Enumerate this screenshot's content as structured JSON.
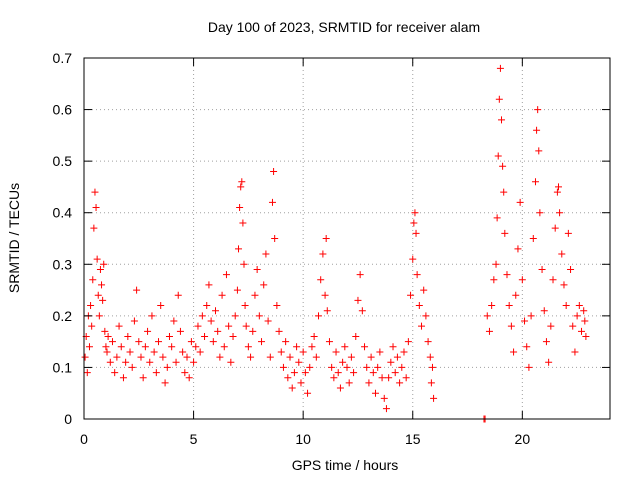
{
  "chart_data": {
    "type": "scatter",
    "title": "Day 100 of 2023, SRMTID for receiver alam",
    "xlabel": "GPS time / hours",
    "ylabel": "SRMTID / TECUs",
    "xlim": [
      0,
      24
    ],
    "ylim": [
      0,
      0.7
    ],
    "xticks": [
      0,
      5,
      10,
      15,
      20
    ],
    "xtick_labels": [
      "0",
      "5",
      "10",
      "15",
      "20"
    ],
    "yticks": [
      0,
      0.1,
      0.2,
      0.3,
      0.4,
      0.5,
      0.6,
      0.7
    ],
    "ytick_labels": [
      "0",
      "0.1",
      "0.2",
      "0.3",
      "0.4",
      "0.5",
      "0.6",
      "0.7"
    ],
    "grid": true,
    "marker": "+",
    "series": [
      {
        "name": "SRMTID",
        "color": "#ff0000",
        "points": [
          [
            0.05,
            0.12
          ],
          [
            0.1,
            0.16
          ],
          [
            0.15,
            0.09
          ],
          [
            0.2,
            0.2
          ],
          [
            0.25,
            0.14
          ],
          [
            0.3,
            0.22
          ],
          [
            0.35,
            0.18
          ],
          [
            0.4,
            0.27
          ],
          [
            0.45,
            0.37
          ],
          [
            0.5,
            0.44
          ],
          [
            0.55,
            0.41
          ],
          [
            0.6,
            0.31
          ],
          [
            0.65,
            0.24
          ],
          [
            0.7,
            0.2
          ],
          [
            0.75,
            0.29
          ],
          [
            0.8,
            0.26
          ],
          [
            0.85,
            0.23
          ],
          [
            0.9,
            0.3
          ],
          [
            0.95,
            0.17
          ],
          [
            1.0,
            0.14
          ],
          [
            1.05,
            0.13
          ],
          [
            1.1,
            0.16
          ],
          [
            1.2,
            0.11
          ],
          [
            1.3,
            0.15
          ],
          [
            1.4,
            0.09
          ],
          [
            1.5,
            0.12
          ],
          [
            1.6,
            0.18
          ],
          [
            1.7,
            0.14
          ],
          [
            1.8,
            0.08
          ],
          [
            1.9,
            0.11
          ],
          [
            2.0,
            0.16
          ],
          [
            2.1,
            0.13
          ],
          [
            2.2,
            0.1
          ],
          [
            2.3,
            0.19
          ],
          [
            2.4,
            0.25
          ],
          [
            2.5,
            0.15
          ],
          [
            2.6,
            0.12
          ],
          [
            2.7,
            0.08
          ],
          [
            2.8,
            0.14
          ],
          [
            2.9,
            0.17
          ],
          [
            3.0,
            0.11
          ],
          [
            3.1,
            0.2
          ],
          [
            3.2,
            0.13
          ],
          [
            3.3,
            0.09
          ],
          [
            3.4,
            0.15
          ],
          [
            3.5,
            0.22
          ],
          [
            3.6,
            0.12
          ],
          [
            3.7,
            0.07
          ],
          [
            3.8,
            0.1
          ],
          [
            3.9,
            0.16
          ],
          [
            4.0,
            0.14
          ],
          [
            4.1,
            0.19
          ],
          [
            4.2,
            0.11
          ],
          [
            4.3,
            0.24
          ],
          [
            4.4,
            0.17
          ],
          [
            4.5,
            0.13
          ],
          [
            4.6,
            0.09
          ],
          [
            4.7,
            0.12
          ],
          [
            4.8,
            0.08
          ],
          [
            4.9,
            0.15
          ],
          [
            5.0,
            0.11
          ],
          [
            5.1,
            0.14
          ],
          [
            5.2,
            0.18
          ],
          [
            5.3,
            0.13
          ],
          [
            5.4,
            0.2
          ],
          [
            5.5,
            0.16
          ],
          [
            5.6,
            0.22
          ],
          [
            5.7,
            0.26
          ],
          [
            5.8,
            0.19
          ],
          [
            5.9,
            0.15
          ],
          [
            6.0,
            0.21
          ],
          [
            6.1,
            0.17
          ],
          [
            6.2,
            0.12
          ],
          [
            6.3,
            0.24
          ],
          [
            6.4,
            0.14
          ],
          [
            6.5,
            0.28
          ],
          [
            6.6,
            0.18
          ],
          [
            6.7,
            0.11
          ],
          [
            6.8,
            0.16
          ],
          [
            6.9,
            0.2
          ],
          [
            7.0,
            0.25
          ],
          [
            7.05,
            0.33
          ],
          [
            7.1,
            0.41
          ],
          [
            7.15,
            0.45
          ],
          [
            7.2,
            0.46
          ],
          [
            7.25,
            0.38
          ],
          [
            7.3,
            0.3
          ],
          [
            7.35,
            0.22
          ],
          [
            7.4,
            0.18
          ],
          [
            7.5,
            0.14
          ],
          [
            7.6,
            0.12
          ],
          [
            7.7,
            0.17
          ],
          [
            7.8,
            0.24
          ],
          [
            7.9,
            0.29
          ],
          [
            8.0,
            0.2
          ],
          [
            8.1,
            0.15
          ],
          [
            8.2,
            0.26
          ],
          [
            8.3,
            0.32
          ],
          [
            8.4,
            0.19
          ],
          [
            8.5,
            0.12
          ],
          [
            8.6,
            0.42
          ],
          [
            8.65,
            0.48
          ],
          [
            8.7,
            0.35
          ],
          [
            8.8,
            0.22
          ],
          [
            8.9,
            0.17
          ],
          [
            9.0,
            0.13
          ],
          [
            9.1,
            0.1
          ],
          [
            9.2,
            0.15
          ],
          [
            9.3,
            0.08
          ],
          [
            9.4,
            0.12
          ],
          [
            9.5,
            0.06
          ],
          [
            9.6,
            0.09
          ],
          [
            9.7,
            0.14
          ],
          [
            9.8,
            0.11
          ],
          [
            9.9,
            0.07
          ],
          [
            10.0,
            0.13
          ],
          [
            10.1,
            0.09
          ],
          [
            10.2,
            0.05
          ],
          [
            10.3,
            0.1
          ],
          [
            10.4,
            0.14
          ],
          [
            10.5,
            0.16
          ],
          [
            10.6,
            0.12
          ],
          [
            10.7,
            0.2
          ],
          [
            10.8,
            0.27
          ],
          [
            10.9,
            0.32
          ],
          [
            11.0,
            0.24
          ],
          [
            11.05,
            0.35
          ],
          [
            11.1,
            0.21
          ],
          [
            11.2,
            0.15
          ],
          [
            11.3,
            0.1
          ],
          [
            11.4,
            0.08
          ],
          [
            11.5,
            0.13
          ],
          [
            11.6,
            0.09
          ],
          [
            11.7,
            0.06
          ],
          [
            11.8,
            0.11
          ],
          [
            11.9,
            0.14
          ],
          [
            12.0,
            0.1
          ],
          [
            12.1,
            0.07
          ],
          [
            12.2,
            0.12
          ],
          [
            12.3,
            0.09
          ],
          [
            12.4,
            0.16
          ],
          [
            12.5,
            0.23
          ],
          [
            12.6,
            0.28
          ],
          [
            12.7,
            0.21
          ],
          [
            12.8,
            0.14
          ],
          [
            12.9,
            0.1
          ],
          [
            13.0,
            0.07
          ],
          [
            13.1,
            0.12
          ],
          [
            13.2,
            0.09
          ],
          [
            13.3,
            0.05
          ],
          [
            13.4,
            0.1
          ],
          [
            13.5,
            0.13
          ],
          [
            13.6,
            0.08
          ],
          [
            13.7,
            0.04
          ],
          [
            13.8,
            0.02
          ],
          [
            13.9,
            0.08
          ],
          [
            14.0,
            0.11
          ],
          [
            14.1,
            0.14
          ],
          [
            14.2,
            0.09
          ],
          [
            14.3,
            0.12
          ],
          [
            14.4,
            0.07
          ],
          [
            14.5,
            0.1
          ],
          [
            14.6,
            0.13
          ],
          [
            14.7,
            0.08
          ],
          [
            14.8,
            0.15
          ],
          [
            14.9,
            0.24
          ],
          [
            15.0,
            0.31
          ],
          [
            15.05,
            0.38
          ],
          [
            15.1,
            0.4
          ],
          [
            15.15,
            0.36
          ],
          [
            15.2,
            0.28
          ],
          [
            15.3,
            0.22
          ],
          [
            15.4,
            0.18
          ],
          [
            15.5,
            0.25
          ],
          [
            15.6,
            0.2
          ],
          [
            15.7,
            0.15
          ],
          [
            15.8,
            0.12
          ],
          [
            15.85,
            0.07
          ],
          [
            15.9,
            0.1
          ],
          [
            15.95,
            0.04
          ],
          [
            18.25,
            0.0
          ],
          [
            18.3,
            0.0
          ],
          [
            18.4,
            0.2
          ],
          [
            18.5,
            0.17
          ],
          [
            18.6,
            0.22
          ],
          [
            18.7,
            0.27
          ],
          [
            18.8,
            0.3
          ],
          [
            18.85,
            0.39
          ],
          [
            18.9,
            0.51
          ],
          [
            18.95,
            0.62
          ],
          [
            19.0,
            0.68
          ],
          [
            19.05,
            0.58
          ],
          [
            19.1,
            0.49
          ],
          [
            19.15,
            0.44
          ],
          [
            19.2,
            0.36
          ],
          [
            19.3,
            0.28
          ],
          [
            19.4,
            0.22
          ],
          [
            19.5,
            0.18
          ],
          [
            19.6,
            0.13
          ],
          [
            19.7,
            0.24
          ],
          [
            19.8,
            0.33
          ],
          [
            19.9,
            0.42
          ],
          [
            20.0,
            0.27
          ],
          [
            20.1,
            0.19
          ],
          [
            20.2,
            0.14
          ],
          [
            20.3,
            0.1
          ],
          [
            20.4,
            0.2
          ],
          [
            20.5,
            0.35
          ],
          [
            20.6,
            0.46
          ],
          [
            20.65,
            0.56
          ],
          [
            20.7,
            0.6
          ],
          [
            20.75,
            0.52
          ],
          [
            20.8,
            0.4
          ],
          [
            20.9,
            0.29
          ],
          [
            21.0,
            0.21
          ],
          [
            21.1,
            0.15
          ],
          [
            21.2,
            0.11
          ],
          [
            21.3,
            0.18
          ],
          [
            21.4,
            0.27
          ],
          [
            21.5,
            0.37
          ],
          [
            21.6,
            0.44
          ],
          [
            21.65,
            0.45
          ],
          [
            21.7,
            0.4
          ],
          [
            21.8,
            0.32
          ],
          [
            21.9,
            0.26
          ],
          [
            22.0,
            0.22
          ],
          [
            22.1,
            0.36
          ],
          [
            22.2,
            0.29
          ],
          [
            22.3,
            0.18
          ],
          [
            22.4,
            0.13
          ],
          [
            22.5,
            0.2
          ],
          [
            22.6,
            0.22
          ],
          [
            22.7,
            0.17
          ],
          [
            22.8,
            0.21
          ],
          [
            22.85,
            0.19
          ],
          [
            22.9,
            0.16
          ]
        ]
      }
    ]
  }
}
